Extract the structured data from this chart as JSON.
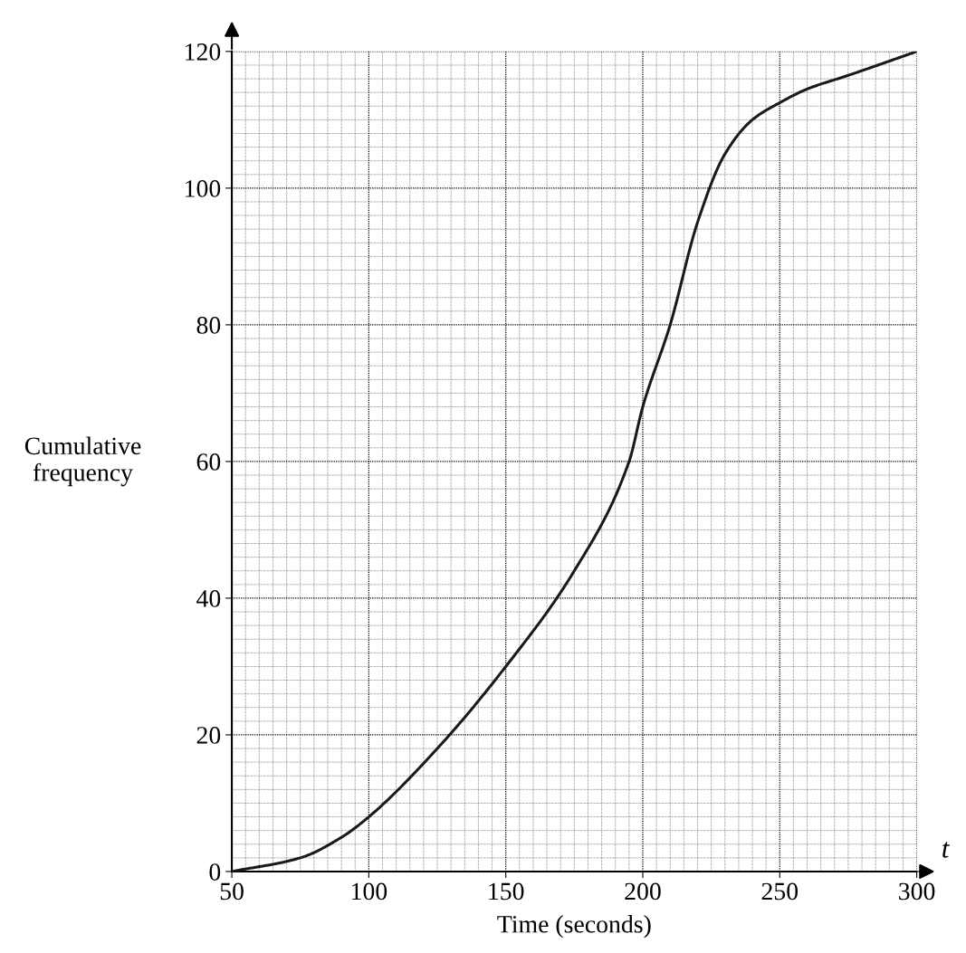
{
  "chart_data": {
    "type": "line",
    "xlabel": "Time (seconds)",
    "ylabel": "Cumulative\nfrequency",
    "annotations": [
      "t"
    ],
    "x": [
      50,
      75,
      90,
      100,
      125,
      150,
      175,
      195,
      200,
      210,
      220,
      230,
      240,
      250,
      260,
      275,
      300
    ],
    "series": [
      {
        "color": "#1a1a1a",
        "values": [
          0,
          2,
          5,
          8,
          18,
          30,
          44,
          60,
          68,
          80,
          95,
          105,
          110,
          112.5,
          114.5,
          116.5,
          120
        ]
      }
    ],
    "xlim": [
      50,
      300
    ],
    "ylim": [
      0,
      120
    ],
    "xticks": [
      50,
      100,
      150,
      200,
      250,
      300
    ],
    "yticks": [
      0,
      20,
      40,
      60,
      80,
      100,
      120
    ],
    "grid": true,
    "marker": "none",
    "line_style": "solid",
    "legend": false
  }
}
